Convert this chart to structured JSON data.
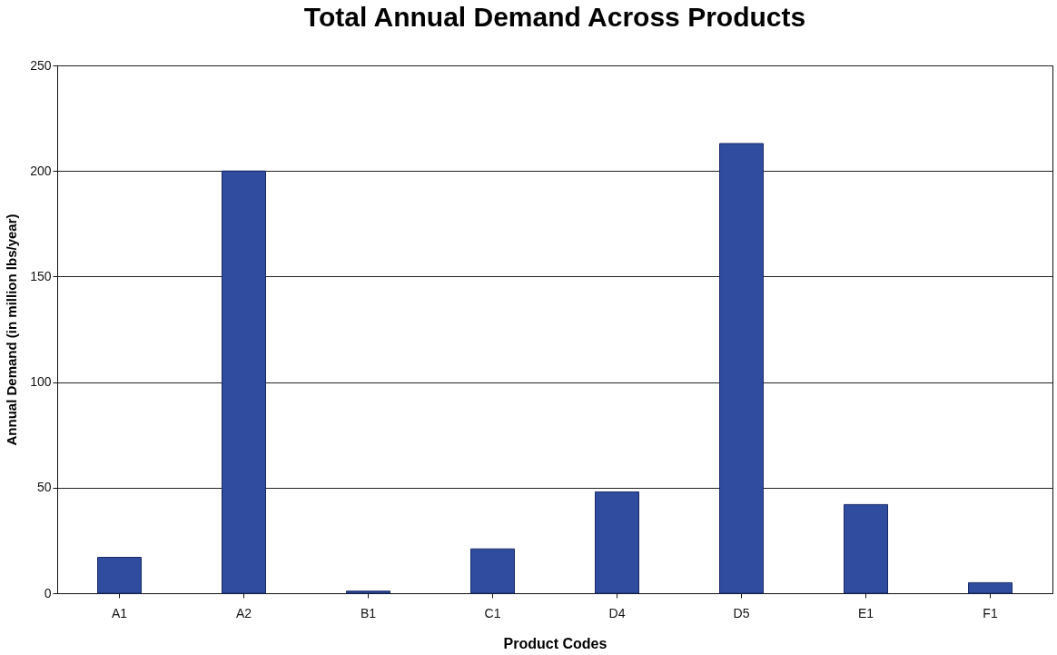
{
  "chart_data": {
    "type": "bar",
    "title": "Total Annual Demand Across Products",
    "xlabel": "Product Codes",
    "ylabel": "Annual Demand (in million lbs/year)",
    "categories": [
      "A1",
      "A2",
      "B1",
      "C1",
      "D4",
      "D5",
      "E1",
      "F1"
    ],
    "values": [
      17,
      200,
      1,
      21,
      48,
      213,
      42,
      5
    ],
    "color": "#2f4c9f",
    "ylim": [
      0,
      250
    ],
    "yticks": [
      0,
      50,
      100,
      150,
      200,
      250
    ],
    "grid": "y"
  }
}
